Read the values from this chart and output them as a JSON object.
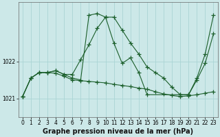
{
  "title": "Graphe pression niveau de la mer (hPa)",
  "bg_color": "#cce8e8",
  "grid_color": "#aad4d4",
  "line_color": "#1a5e2a",
  "marker": "+",
  "markersize": 4,
  "linewidth": 0.8,
  "ylim": [
    1020.5,
    1023.6
  ],
  "yticks": [
    1021,
    1022
  ],
  "xticks": [
    0,
    1,
    2,
    3,
    4,
    5,
    6,
    7,
    8,
    9,
    10,
    11,
    12,
    13,
    14,
    15,
    16,
    17,
    18,
    19,
    20,
    21,
    22,
    23
  ],
  "tick_fontsize": 5.5,
  "label_fontsize": 7,
  "s1_x": [
    0,
    1,
    2,
    3,
    4,
    5,
    6,
    7,
    8,
    9,
    10,
    11,
    12,
    13,
    14,
    15,
    16,
    17,
    18,
    19,
    20,
    21,
    22,
    23
  ],
  "s1_y": [
    1021.05,
    1021.55,
    1021.7,
    1021.7,
    1021.75,
    1021.65,
    1021.65,
    1022.05,
    1022.45,
    1022.9,
    1023.2,
    1023.2,
    1022.85,
    1022.5,
    1022.2,
    1021.85,
    1021.7,
    1021.55,
    1021.3,
    1021.1,
    1021.1,
    1021.5,
    1021.95,
    1022.75
  ],
  "s2_x": [
    0,
    1,
    2,
    3,
    4,
    5,
    6,
    7,
    8,
    9,
    10,
    11,
    12,
    13,
    14,
    15,
    19,
    20,
    21,
    22,
    23
  ],
  "s2_y": [
    1021.05,
    1021.55,
    1021.7,
    1021.7,
    1021.75,
    1021.65,
    1021.55,
    1021.5,
    1023.25,
    1023.3,
    1023.2,
    1022.5,
    1021.95,
    1022.1,
    1021.7,
    1021.1,
    1021.1,
    1021.1,
    1021.55,
    1022.2,
    1023.25
  ],
  "s3_x": [
    0,
    1,
    2,
    3,
    4,
    5,
    6,
    7,
    8,
    9,
    10,
    11,
    12,
    13,
    14,
    15,
    16,
    17,
    18,
    19,
    20,
    21,
    22,
    23
  ],
  "s3_y": [
    1021.05,
    1021.55,
    1021.7,
    1021.7,
    1021.68,
    1021.6,
    1021.5,
    1021.48,
    1021.46,
    1021.44,
    1021.42,
    1021.38,
    1021.35,
    1021.32,
    1021.28,
    1021.25,
    1021.18,
    1021.12,
    1021.08,
    1021.05,
    1021.07,
    1021.1,
    1021.14,
    1021.18
  ]
}
